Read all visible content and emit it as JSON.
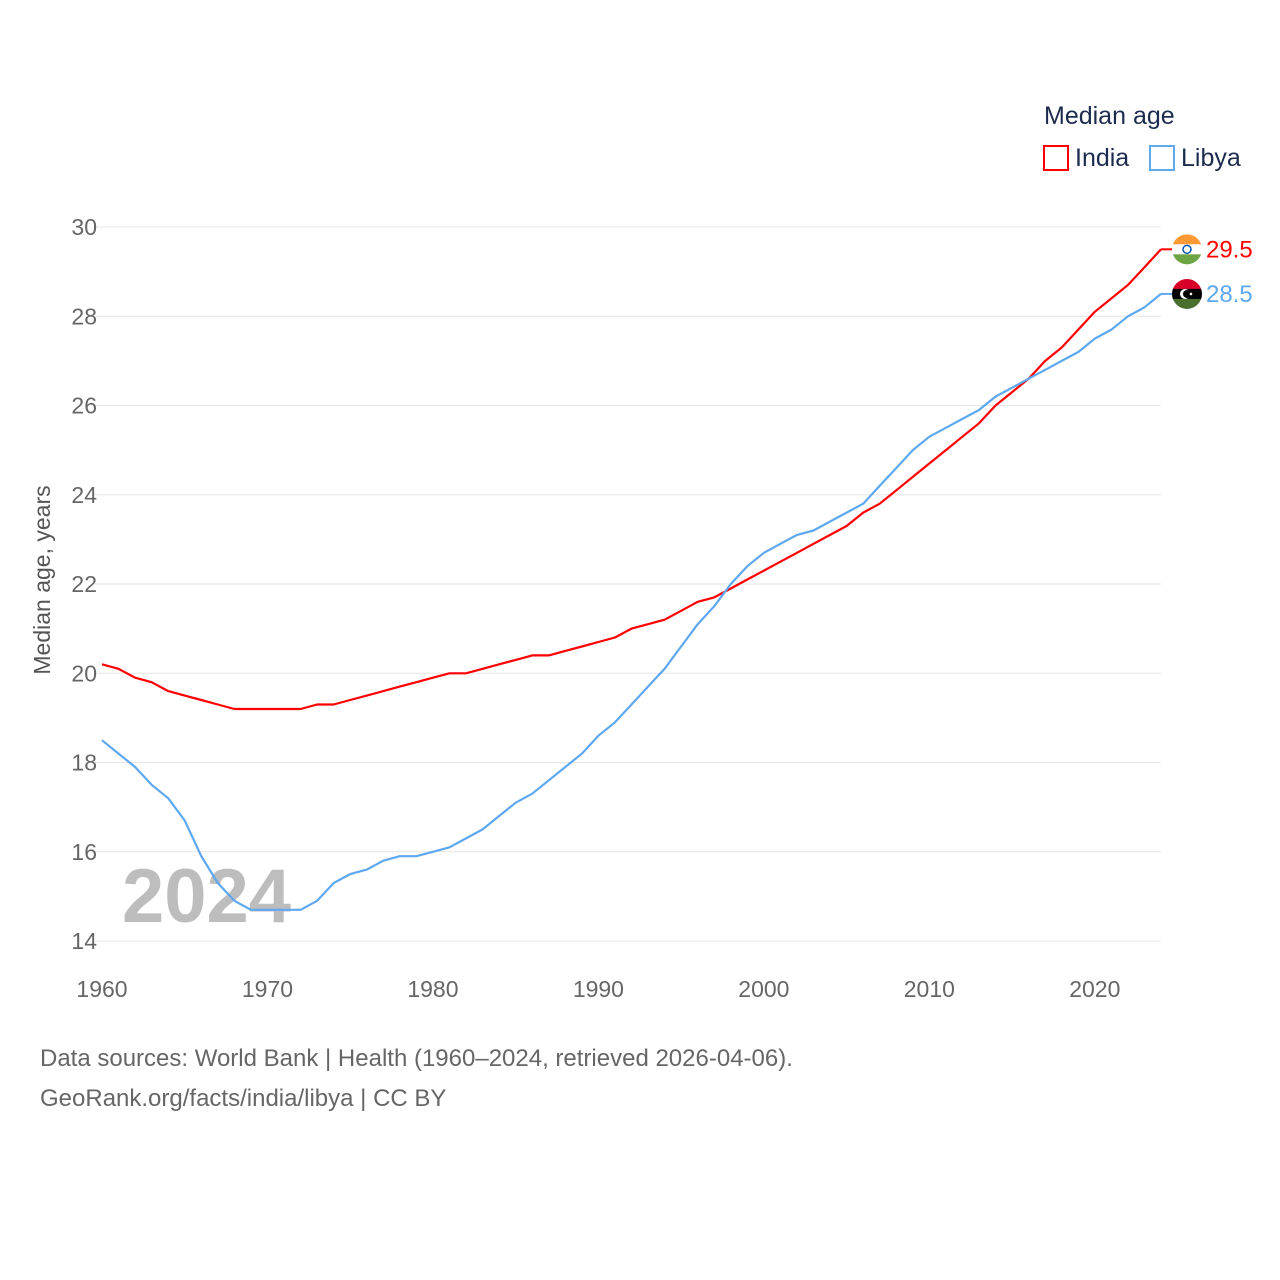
{
  "chart_data": {
    "type": "line",
    "title": "",
    "xlabel": "",
    "ylabel": "Median age, years",
    "xlim": [
      1960,
      2024
    ],
    "ylim": [
      14,
      30
    ],
    "xticks": [
      1960,
      1970,
      1980,
      1990,
      2000,
      2010,
      2020
    ],
    "yticks": [
      14,
      16,
      18,
      20,
      22,
      24,
      26,
      28,
      30
    ],
    "grid": true,
    "legend": {
      "title": "Median age",
      "placement": "top-right"
    },
    "year_watermark": "2024",
    "x": [
      1960,
      1961,
      1962,
      1963,
      1964,
      1965,
      1966,
      1967,
      1968,
      1969,
      1970,
      1971,
      1972,
      1973,
      1974,
      1975,
      1976,
      1977,
      1978,
      1979,
      1980,
      1981,
      1982,
      1983,
      1984,
      1985,
      1986,
      1987,
      1988,
      1989,
      1990,
      1991,
      1992,
      1993,
      1994,
      1995,
      1996,
      1997,
      1998,
      1999,
      2000,
      2001,
      2002,
      2003,
      2004,
      2005,
      2006,
      2007,
      2008,
      2009,
      2010,
      2011,
      2012,
      2013,
      2014,
      2015,
      2016,
      2017,
      2018,
      2019,
      2020,
      2021,
      2022,
      2023,
      2024
    ],
    "series": [
      {
        "name": "India",
        "color": "#ff0000",
        "end_label": "29.5",
        "values": [
          20.2,
          20.1,
          19.9,
          19.8,
          19.6,
          19.5,
          19.4,
          19.3,
          19.2,
          19.2,
          19.2,
          19.2,
          19.2,
          19.3,
          19.3,
          19.4,
          19.5,
          19.6,
          19.7,
          19.8,
          19.9,
          20.0,
          20.0,
          20.1,
          20.2,
          20.3,
          20.4,
          20.4,
          20.5,
          20.6,
          20.7,
          20.8,
          21.0,
          21.1,
          21.2,
          21.4,
          21.6,
          21.7,
          21.9,
          22.1,
          22.3,
          22.5,
          22.7,
          22.9,
          23.1,
          23.3,
          23.6,
          23.8,
          24.1,
          24.4,
          24.7,
          25.0,
          25.3,
          25.6,
          26.0,
          26.3,
          26.6,
          27.0,
          27.3,
          27.7,
          28.1,
          28.4,
          28.7,
          29.1,
          29.5
        ]
      },
      {
        "name": "Libya",
        "color": "#5ea8ef",
        "end_label": "28.5",
        "values": [
          18.5,
          18.2,
          17.9,
          17.5,
          17.2,
          16.7,
          15.9,
          15.3,
          14.9,
          14.7,
          14.7,
          14.7,
          14.7,
          14.9,
          15.3,
          15.5,
          15.6,
          15.8,
          15.9,
          15.9,
          16.0,
          16.1,
          16.3,
          16.5,
          16.8,
          17.1,
          17.3,
          17.6,
          17.9,
          18.2,
          18.6,
          18.9,
          19.3,
          19.7,
          20.1,
          20.6,
          21.1,
          21.5,
          22.0,
          22.4,
          22.7,
          22.9,
          23.1,
          23.2,
          23.4,
          23.6,
          23.8,
          24.2,
          24.6,
          25.0,
          25.3,
          25.5,
          25.7,
          25.9,
          26.2,
          26.4,
          26.6,
          26.8,
          27.0,
          27.2,
          27.5,
          27.7,
          28.0,
          28.2,
          28.5
        ]
      }
    ]
  },
  "footer": {
    "line1": "Data sources: World Bank | Health (1960–2024, retrieved 2026-04-06).",
    "line2": "GeoRank.org/facts/india/libya | CC BY"
  }
}
